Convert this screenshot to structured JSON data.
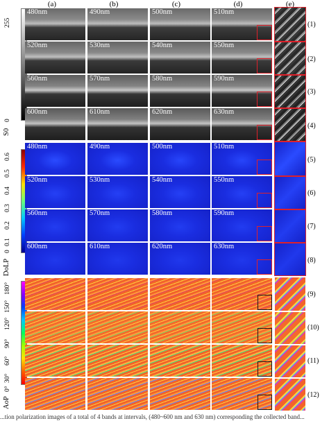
{
  "figure": {
    "columns": [
      "(a)",
      "(b)",
      "(c)",
      "(d)",
      "(e)"
    ],
    "row_labels": [
      "(1)",
      "(2)",
      "(3)",
      "(4)",
      "(5)",
      "(6)",
      "(7)",
      "(8)",
      "(9)",
      "(10)",
      "(11)",
      "(12)"
    ],
    "wavelengths": [
      [
        "480nm",
        "490nm",
        "500nm",
        "510nm"
      ],
      [
        "520nm",
        "530nm",
        "540nm",
        "550nm"
      ],
      [
        "560nm",
        "570nm",
        "580nm",
        "590nm"
      ],
      [
        "600nm",
        "610nm",
        "620nm",
        "630nm"
      ]
    ],
    "s0_bar": {
      "name": "S0",
      "top": "255",
      "bottom": "0"
    },
    "dolp_bar": {
      "name": "DoLP",
      "ticks": [
        "0.6",
        "0.5",
        "0.4",
        "0.3",
        "0.2",
        "0.1",
        "0"
      ]
    },
    "aop_bar": {
      "name": "AoP",
      "ticks": [
        "180°",
        "150°",
        "120°",
        "90°",
        "60°",
        "30°",
        "0°"
      ]
    },
    "caption": "...tion polarization images of a total of 4 bands at intervals, (480~600 nm and 630 nm) corresponding the collected band..."
  },
  "colors": {
    "zoom_red": "#e0202a",
    "dolp_blue": "#1a1fd8",
    "aop_orange": "#f2632a"
  }
}
